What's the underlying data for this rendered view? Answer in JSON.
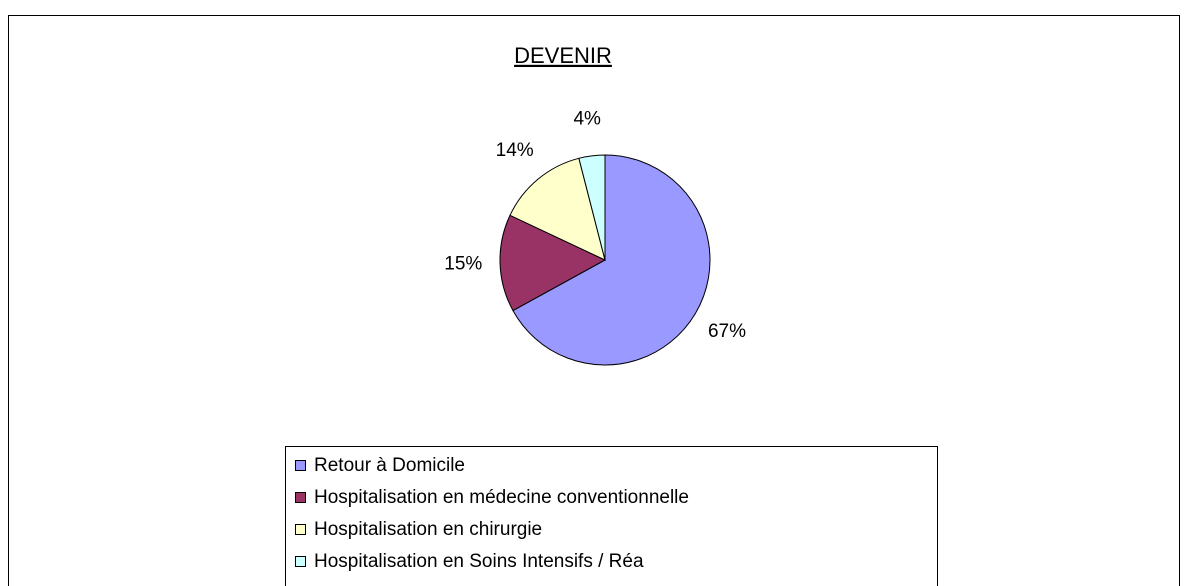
{
  "chart_data": {
    "type": "pie",
    "title": "DEVENIR",
    "categories": [
      "Retour à Domicile",
      "Hospitalisation en médecine conventionnelle",
      "Hospitalisation en chirurgie",
      "Hospitalisation en Soins Intensifs / Réa"
    ],
    "values": [
      67,
      15,
      14,
      4
    ],
    "value_labels": [
      "67%",
      "15%",
      "14%",
      "4%"
    ],
    "colors": [
      "#9999ff",
      "#993366",
      "#ffffcc",
      "#ccffff"
    ]
  }
}
